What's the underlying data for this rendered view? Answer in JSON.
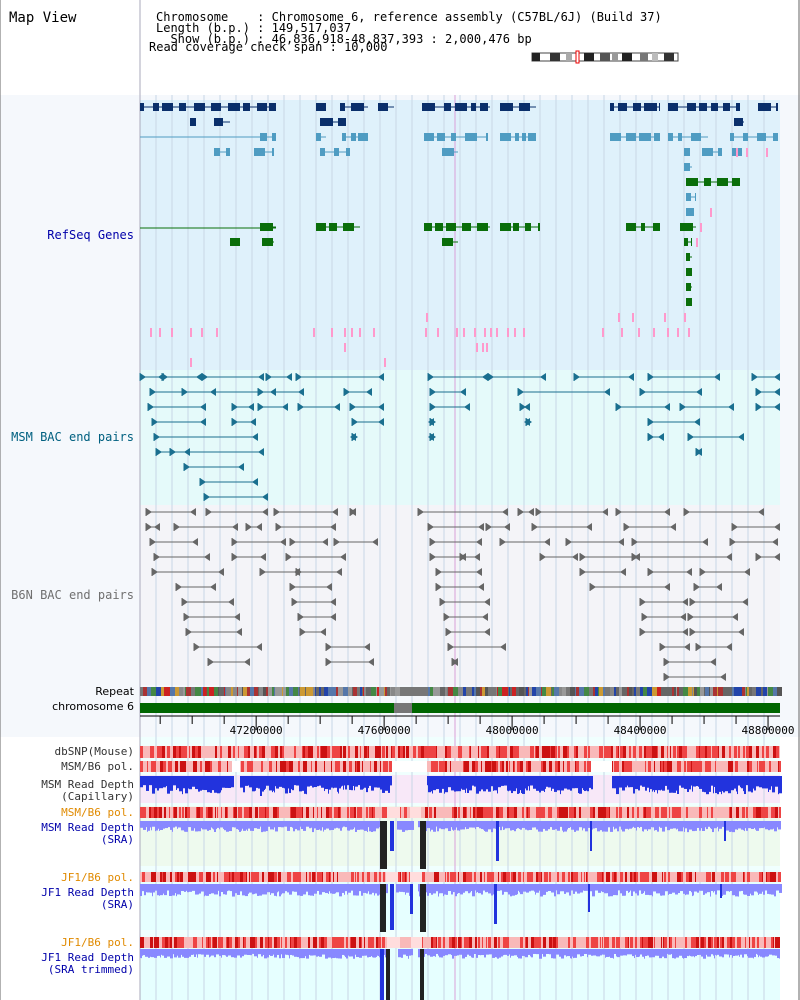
{
  "header": {
    "title": "Map View",
    "info_lines": [
      "Chromosome    : Chromosome 6, reference assembly (C57BL/6J) (Build 37)",
      "Length (b.p.) : 149,517,037",
      "  Show (b.p.) : 46,836,918-48,837,393 : 2,000,476 bp",
      "Read coverage check span : 10,000"
    ]
  },
  "tracks": {
    "refseq": {
      "label": "RefSeq Genes",
      "color": "#0000aa"
    },
    "msm_bac": {
      "label": "MSM BAC end pairs",
      "color": "#006080"
    },
    "b6n_bac": {
      "label": "B6N BAC end pairs",
      "color": "#707070"
    },
    "repeat": {
      "label": "Repeat"
    },
    "chromosome": {
      "label": "chromosome 6"
    },
    "dbsnp": {
      "label": "dbSNP(Mouse)",
      "color": "#333333"
    },
    "msm_b6_pol_cap": {
      "label": "MSM/B6 pol.",
      "color": "#333333"
    },
    "msm_depth_cap": {
      "label": "MSM Read Depth\n(Capillary)",
      "color": "#333333"
    },
    "msm_b6_pol_sra": {
      "label": "MSM/B6 pol.",
      "color": "#e08a00"
    },
    "msm_depth_sra": {
      "label": "MSM Read Depth\n(SRA)",
      "color": "#0000aa"
    },
    "jf1_b6_pol": {
      "label": "JF1/B6 pol.",
      "color": "#e08a00"
    },
    "jf1_depth_sra": {
      "label": "JF1 Read Depth\n(SRA)",
      "color": "#0000aa"
    },
    "jf1_b6_pol_trim": {
      "label": "JF1/B6 pol.",
      "color": "#e08a00"
    },
    "jf1_depth_trim": {
      "label": "JF1 Read Depth\n(SRA trimmed)",
      "color": "#0000aa"
    }
  },
  "axis": {
    "start_bp": 46836918,
    "end_bp": 48837393,
    "ticks": [
      "47200000",
      "47600000",
      "48000000",
      "48400000",
      "48800000"
    ]
  },
  "colors": {
    "refseq_bg": "#dff1fb",
    "bac_bg": "#e5fafa",
    "gene_dark": "#0a2f6b",
    "gene_mid": "#4f9cc2",
    "gene_green": "#0a6e0a",
    "pink": "#ff99cc",
    "depth_blue": "#2233dd",
    "depth_light": "#8888ff",
    "snp_red": "#ee4444",
    "chrom_green": "#006600"
  }
}
